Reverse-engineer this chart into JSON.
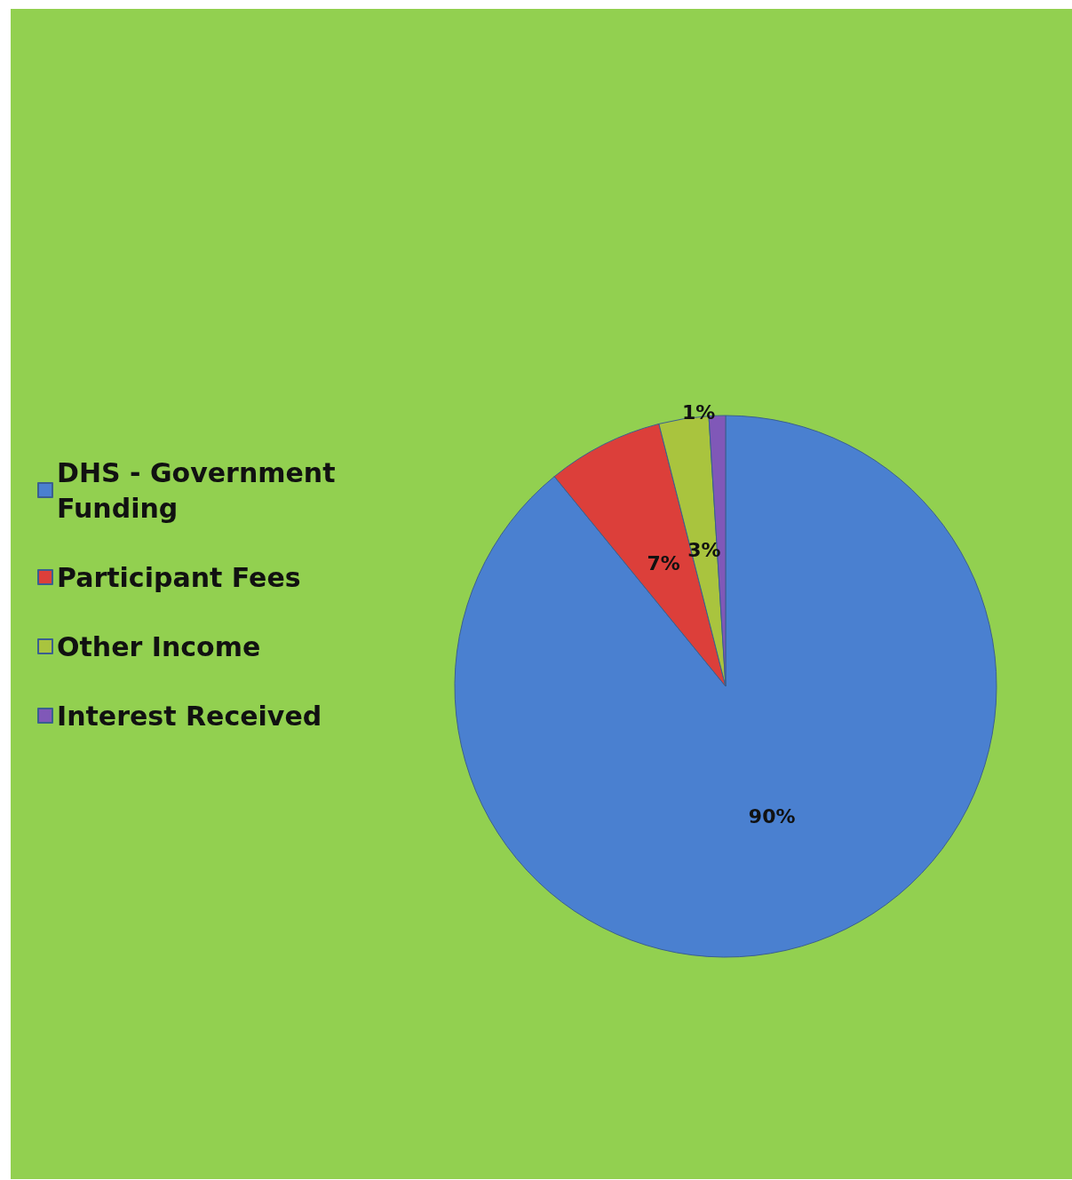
{
  "chart_data": {
    "type": "pie",
    "categories": [
      "DHS - Government Funding",
      "Participant Fees",
      "Other Income",
      "Interest Received"
    ],
    "values": [
      90,
      7,
      3,
      1
    ],
    "value_labels": [
      "90%",
      "7%",
      "3%",
      "1%"
    ],
    "colors": [
      "#4a80d0",
      "#dc3f3a",
      "#a9c43e",
      "#8058b8"
    ],
    "legend": "left"
  }
}
